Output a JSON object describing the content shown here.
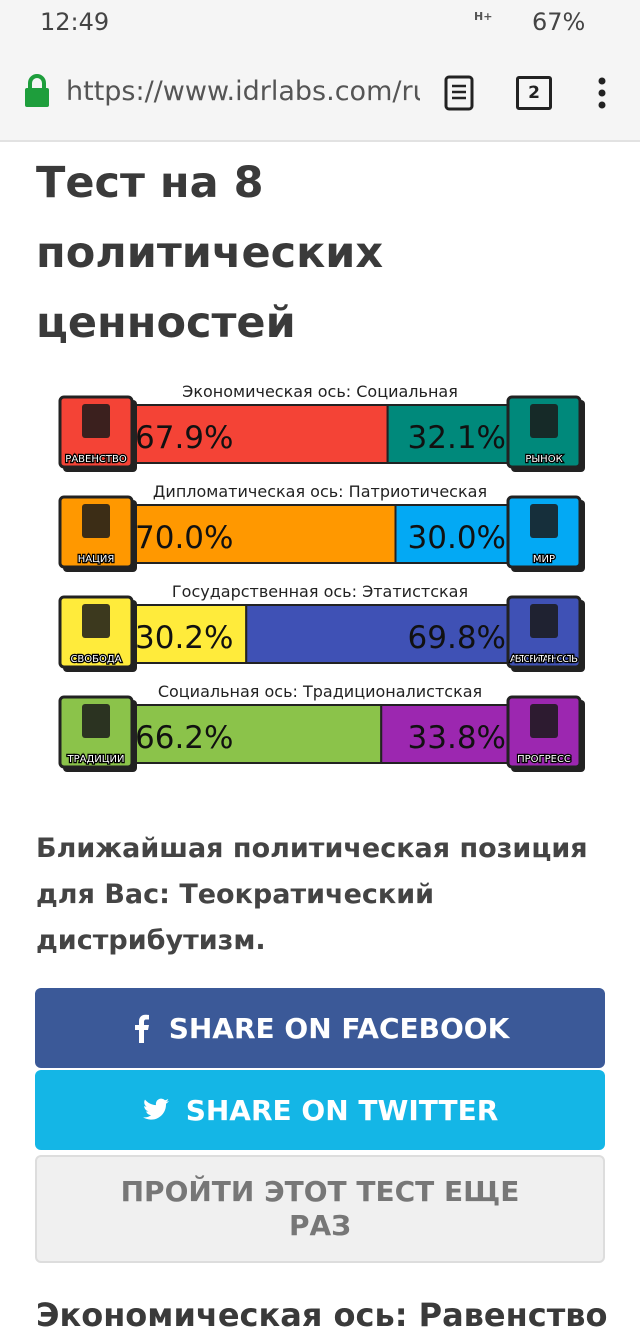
{
  "status_bar": {
    "time": "12:49",
    "network": "H+",
    "battery": "67%"
  },
  "browser": {
    "url": "https://www.idrlabs.com/ru",
    "tabs": "2"
  },
  "title": "Тест на 8 политических ценностей",
  "axes": [
    {
      "label": "Экономическая ось: Социальная",
      "left": {
        "name": "РАВЕНСТВО",
        "value": 67.9,
        "label": "67.9%",
        "color": "#f44336"
      },
      "right": {
        "name": "РЫНОК",
        "value": 32.1,
        "label": "32.1%",
        "color": "#00897b"
      }
    },
    {
      "label": "Дипломатическая ось: Патриотическая",
      "left": {
        "name": "НАЦИЯ",
        "value": 70.0,
        "label": "70.0%",
        "color": "#ff9800"
      },
      "right": {
        "name": "МИР",
        "value": 30.0,
        "label": "30.0%",
        "color": "#03a9f4"
      }
    },
    {
      "label": "Государственная ось: Этатистская",
      "left": {
        "name": "СВОБОДА",
        "value": 30.2,
        "label": "30.2%",
        "color": "#ffeb3b"
      },
      "right": {
        "name": "АВТОРИТАРНОСТЬ",
        "value": 69.8,
        "label": "69.8%",
        "color": "#3f51b5"
      }
    },
    {
      "label": "Социальная ось: Традиционалистская",
      "left": {
        "name": "ТРАДИЦИИ",
        "value": 66.2,
        "label": "66.2%",
        "color": "#8bc34a"
      },
      "right": {
        "name": "ПРОГРЕСС",
        "value": 33.8,
        "label": "33.8%",
        "color": "#9c27b0"
      }
    }
  ],
  "result": "Ближайшая политическая позиция для Вас: Теократический дистрибутизм.",
  "buttons": [
    "SHARE ON FACEBOOK",
    "SHARE ON TWITTER",
    "ПРОЙТИ ЭТОТ ТЕСТ ЕЩЕ РАЗ"
  ],
  "next_heading": "Экономическая ось: Равенство"
}
